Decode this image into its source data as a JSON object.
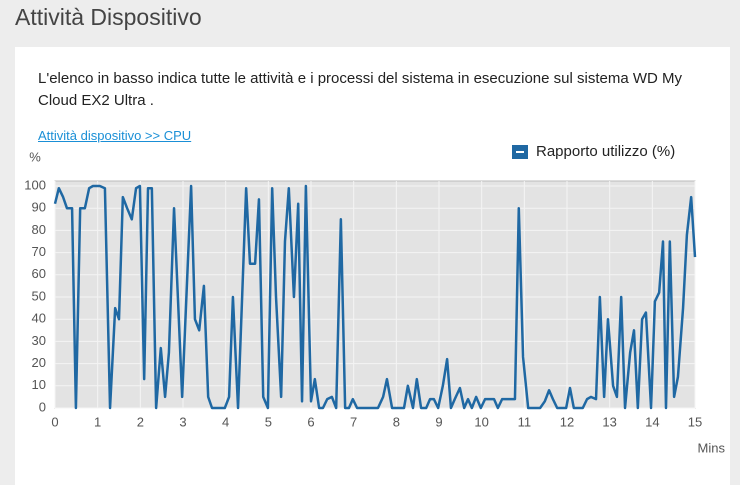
{
  "header": {
    "title": "Attività Dispositivo"
  },
  "description": "L'elenco in basso indica tutte le attività e i processi del sistema in esecuzione sul sistema WD My Cloud EX2 Ultra .",
  "breadcrumb_link": "Attività dispositivo >> CPU",
  "chart_data": {
    "type": "line",
    "y_label": "%",
    "x_label": "Mins",
    "x": [
      0,
      0.09,
      0.19,
      0.28,
      0.4,
      0.49,
      0.59,
      0.7,
      0.8,
      0.89,
      1.05,
      1.17,
      1.29,
      1.41,
      1.5,
      1.59,
      1.69,
      1.8,
      1.9,
      1.99,
      2.09,
      2.18,
      2.27,
      2.37,
      2.48,
      2.58,
      2.67,
      2.79,
      2.88,
      2.98,
      3.19,
      3.28,
      3.38,
      3.49,
      3.59,
      3.68,
      3.98,
      4.08,
      4.17,
      4.29,
      4.48,
      4.57,
      4.69,
      4.78,
      4.88,
      4.99,
      5.09,
      5.18,
      5.3,
      5.39,
      5.48,
      5.6,
      5.7,
      5.79,
      5.88,
      6.0,
      6.09,
      6.19,
      6.28,
      6.38,
      6.49,
      6.59,
      6.7,
      6.8,
      6.89,
      6.98,
      7.08,
      7.38,
      7.57,
      7.69,
      7.78,
      7.9,
      8.09,
      8.18,
      8.27,
      8.39,
      8.48,
      8.58,
      8.7,
      8.79,
      8.88,
      8.98,
      9.09,
      9.19,
      9.28,
      9.37,
      9.49,
      9.59,
      9.68,
      9.77,
      9.87,
      9.98,
      10.08,
      10.17,
      10.29,
      10.38,
      10.48,
      10.57,
      10.69,
      10.78,
      10.87,
      10.97,
      11.09,
      11.18,
      11.37,
      11.48,
      11.58,
      11.67,
      11.77,
      11.88,
      11.98,
      12.07,
      12.16,
      12.28,
      12.37,
      12.47,
      12.56,
      12.68,
      12.77,
      12.87,
      12.96,
      13.08,
      13.17,
      13.27,
      13.36,
      13.48,
      13.57,
      13.66,
      13.76,
      13.85,
      13.97,
      14.06,
      14.16,
      14.25,
      14.32,
      14.41,
      14.51,
      14.6,
      14.72,
      14.81,
      14.91,
      15
    ],
    "series": [
      {
        "name": "Rapporto utilizzo (%)",
        "color": "#1f68a3",
        "values": [
          92,
          99,
          95,
          90,
          90,
          0,
          90,
          90,
          99,
          100,
          100,
          99,
          0,
          45,
          40,
          95,
          90,
          85,
          99,
          100,
          13,
          99,
          99,
          0,
          27,
          5,
          25,
          90,
          50,
          5,
          100,
          40,
          35,
          55,
          5,
          0,
          0,
          5,
          50,
          0,
          99,
          65,
          65,
          94,
          5,
          0,
          99,
          50,
          5,
          75,
          99,
          50,
          92,
          3,
          100,
          3,
          13,
          0,
          0,
          4,
          5,
          0,
          85,
          0,
          0,
          4,
          0,
          0,
          0,
          5,
          13,
          0,
          0,
          0,
          10,
          0,
          13,
          0,
          0,
          4,
          4,
          0,
          10,
          22,
          0,
          4,
          9,
          0,
          4,
          0,
          5,
          0,
          4,
          4,
          4,
          0,
          4,
          4,
          4,
          4,
          90,
          23,
          0,
          0,
          0,
          3,
          8,
          4,
          0,
          0,
          0,
          9,
          0,
          0,
          0,
          4,
          5,
          4,
          50,
          5,
          40,
          10,
          5,
          50,
          0,
          25,
          35,
          0,
          40,
          43,
          0,
          48,
          52,
          75,
          0,
          75,
          5,
          14,
          45,
          78,
          95,
          68
        ]
      }
    ],
    "xlim": [
      0,
      15
    ],
    "xticks": [
      0,
      1,
      2,
      3,
      4,
      5,
      6,
      7,
      8,
      9,
      10,
      11,
      12,
      13,
      14,
      15
    ],
    "ylim": [
      0,
      100
    ],
    "yticks": [
      0,
      10,
      20,
      30,
      40,
      50,
      60,
      70,
      80,
      90,
      100
    ],
    "grid": true
  }
}
